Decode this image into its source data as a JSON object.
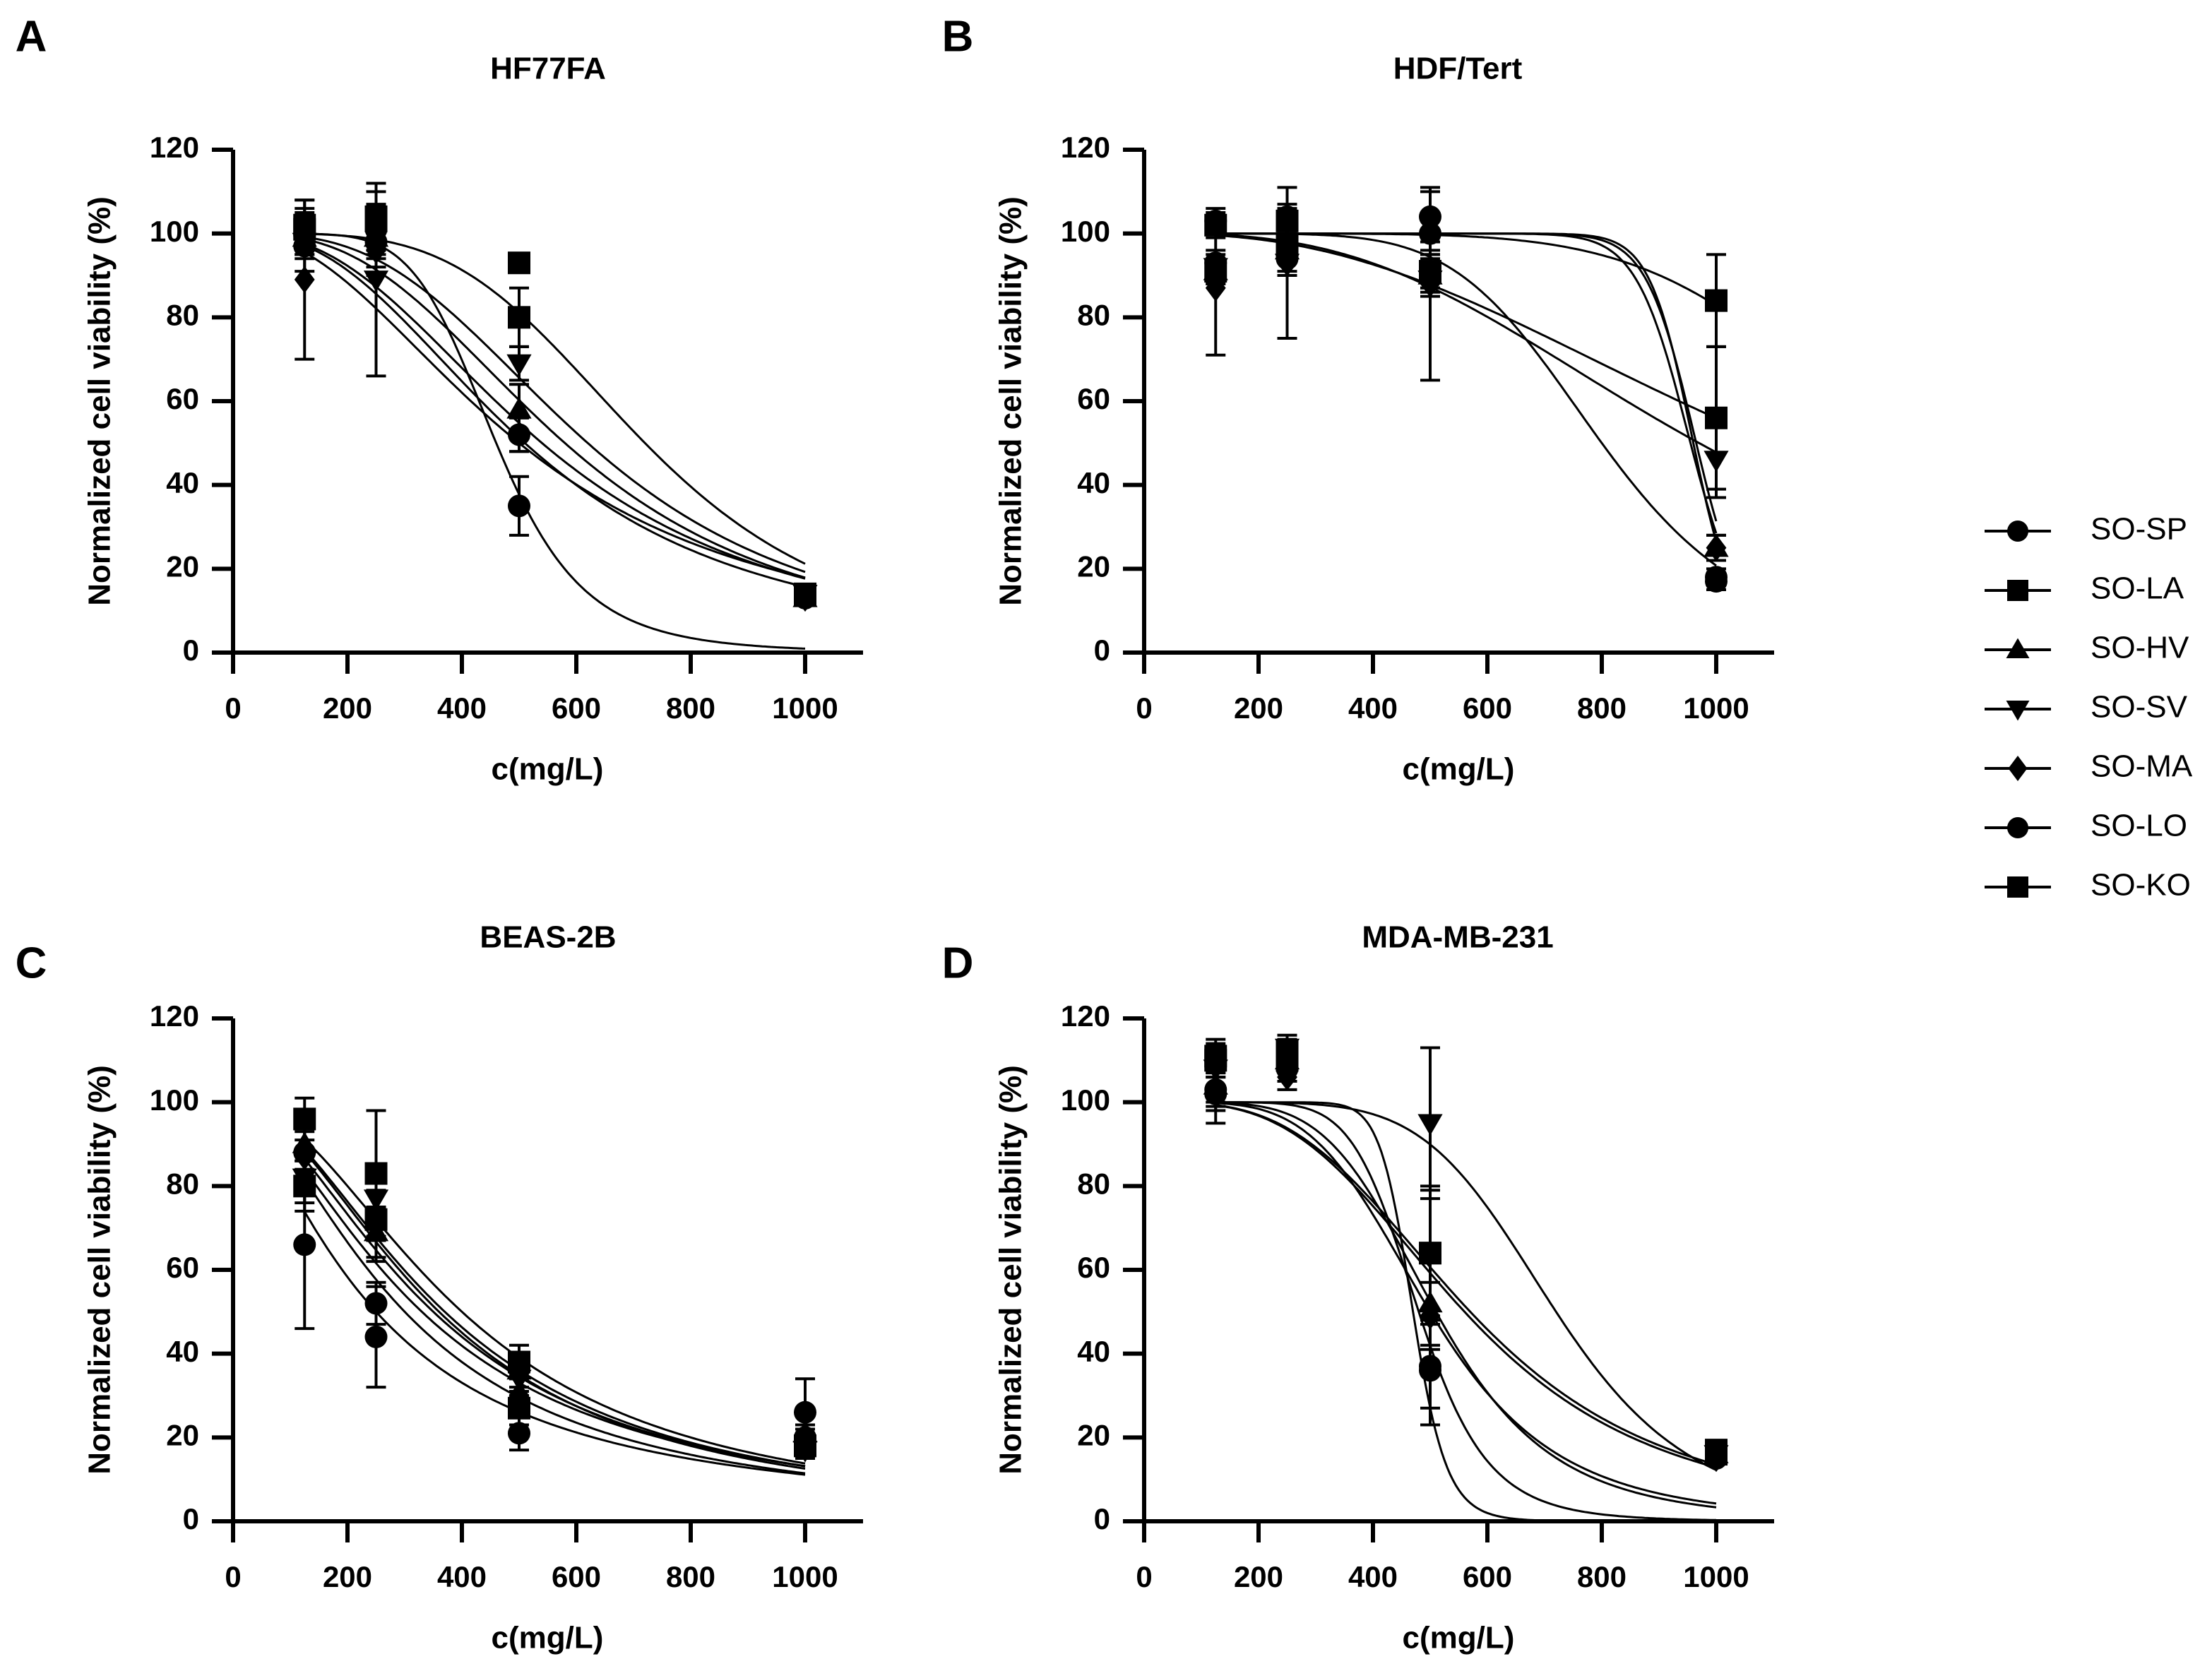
{
  "colors": {
    "ink": "#000000",
    "background": "#ffffff"
  },
  "legend": [
    {
      "label": "SO-SP",
      "marker": "circle"
    },
    {
      "label": "SO-LA",
      "marker": "square"
    },
    {
      "label": "SO-HV",
      "marker": "triangle-up"
    },
    {
      "label": "SO-SV",
      "marker": "triangle-down"
    },
    {
      "label": "SO-MA",
      "marker": "diamond"
    },
    {
      "label": "SO-LO",
      "marker": "circle"
    },
    {
      "label": "SO-KO",
      "marker": "square"
    }
  ],
  "chart_data": [
    {
      "type": "line",
      "panel": "A",
      "title": "HF77FA",
      "xlabel": "c(mg/L)",
      "ylabel": "Normalized cell viability (%)",
      "xlim": [
        0,
        1000
      ],
      "ylim": [
        0,
        120
      ],
      "xticks": [
        "0",
        "200",
        "400",
        "600",
        "800",
        "1000"
      ],
      "yticks": [
        "0",
        "20",
        "40",
        "60",
        "80",
        "100",
        "120"
      ],
      "x": [
        125,
        250,
        500,
        1000
      ],
      "series": [
        {
          "name": "SO-SP",
          "values": [
            100,
            101,
            52,
            13
          ],
          "errors": [
            5,
            6,
            4,
            1
          ],
          "fit": {
            "ic50": 510,
            "hill": 2.5,
            "bottom": 0
          }
        },
        {
          "name": "SO-LA",
          "values": [
            101,
            104,
            80,
            14
          ],
          "errors": [
            5,
            8,
            7,
            1
          ],
          "fit": {
            "ic50": 620,
            "hill": 3,
            "bottom": 0
          }
        },
        {
          "name": "SO-HV",
          "values": [
            99,
            99,
            58,
            13
          ],
          "errors": [
            4,
            5,
            6,
            1
          ],
          "fit": {
            "ic50": 540,
            "hill": 2.5,
            "bottom": 0
          }
        },
        {
          "name": "SO-SV",
          "values": [
            98,
            89,
            69,
            14
          ],
          "errors": [
            4,
            23,
            4,
            1
          ],
          "fit": {
            "ic50": 580,
            "hill": 2.8,
            "bottom": 0
          }
        },
        {
          "name": "SO-MA",
          "values": [
            89,
            96,
            52,
            13
          ],
          "errors": [
            19,
            6,
            4,
            1
          ],
          "fit": {
            "ic50": 500,
            "hill": 2.2,
            "bottom": 0
          }
        },
        {
          "name": "SO-LO",
          "values": [
            97,
            98,
            35,
            13
          ],
          "errors": [
            6,
            6,
            7,
            1
          ],
          "fit": {
            "ic50": 460,
            "hill": 6,
            "bottom": 0
          }
        },
        {
          "name": "SO-KO",
          "values": [
            102,
            103,
            93,
            14
          ],
          "errors": [
            6,
            7,
            1,
            1
          ],
          "fit": {
            "ic50": 720,
            "hill": 4,
            "bottom": 0
          }
        }
      ]
    },
    {
      "type": "line",
      "panel": "B",
      "title": "HDF/Tert",
      "xlabel": "c(mg/L)",
      "ylabel": "Normalized cell viability (%)",
      "xlim": [
        0,
        1000
      ],
      "ylim": [
        0,
        120
      ],
      "xticks": [
        "0",
        "200",
        "400",
        "600",
        "800",
        "1000"
      ],
      "yticks": [
        "0",
        "20",
        "40",
        "60",
        "80",
        "100",
        "120"
      ],
      "x": [
        125,
        250,
        500,
        1000
      ],
      "series": [
        {
          "name": "SO-SP",
          "values": [
            93,
            94,
            100,
            18
          ],
          "errors": [
            3,
            3,
            4,
            2
          ],
          "fit": {
            "ic50": 960,
            "hill": 25,
            "bottom": 0
          }
        },
        {
          "name": "SO-LA",
          "values": [
            102,
            103,
            91,
            84
          ],
          "errors": [
            3,
            3,
            4,
            11
          ],
          "fit": {
            "ic50": 1300,
            "hill": 6,
            "bottom": 0
          }
        },
        {
          "name": "SO-HV",
          "values": [
            91,
            96,
            90,
            25
          ],
          "errors": [
            3,
            3,
            4,
            3
          ],
          "fit": {
            "ic50": 965,
            "hill": 22,
            "bottom": 0
          }
        },
        {
          "name": "SO-SV",
          "values": [
            92,
            93,
            89,
            46
          ],
          "errors": [
            3,
            3,
            4,
            9
          ],
          "fit": {
            "ic50": 970,
            "hill": 2.9,
            "bottom": 0
          }
        },
        {
          "name": "SO-MA",
          "values": [
            87,
            93,
            88,
            25
          ],
          "errors": [
            16,
            18,
            23,
            3
          ],
          "fit": {
            "ic50": 800,
            "hill": 6,
            "bottom": 0
          }
        },
        {
          "name": "SO-LO",
          "values": [
            103,
            104,
            104,
            17
          ],
          "errors": [
            3,
            3,
            6,
            2
          ],
          "fit": {
            "ic50": 955,
            "hill": 20,
            "bottom": 0
          }
        },
        {
          "name": "SO-KO",
          "values": [
            91,
            97,
            91,
            56
          ],
          "errors": [
            3,
            3,
            4,
            17
          ],
          "fit": {
            "ic50": 1100,
            "hill": 2.5,
            "bottom": 0
          }
        }
      ]
    },
    {
      "type": "line",
      "panel": "C",
      "title": "BEAS-2B",
      "xlabel": "c(mg/L)",
      "ylabel": "Normalized cell viability (%)",
      "xlim": [
        0,
        1000
      ],
      "ylim": [
        0,
        120
      ],
      "xticks": [
        "0",
        "200",
        "400",
        "600",
        "800",
        "1000"
      ],
      "yticks": [
        "0",
        "20",
        "40",
        "60",
        "80",
        "100",
        "120"
      ],
      "x": [
        125,
        250,
        500,
        1000
      ],
      "series": [
        {
          "name": "SO-SP",
          "values": [
            88,
            52,
            28,
            20
          ],
          "errors": [
            6,
            5,
            3,
            2
          ],
          "fit": {
            "ic50": 300,
            "hill": 1.7,
            "bottom": 0
          }
        },
        {
          "name": "SO-LA",
          "values": [
            96,
            83,
            38,
            18
          ],
          "errors": [
            5,
            15,
            4,
            2
          ],
          "fit": {
            "ic50": 400,
            "hill": 2,
            "bottom": 0
          }
        },
        {
          "name": "SO-HV",
          "values": [
            90,
            69,
            36,
            21
          ],
          "errors": [
            6,
            6,
            4,
            2
          ],
          "fit": {
            "ic50": 360,
            "hill": 1.9,
            "bottom": 0
          }
        },
        {
          "name": "SO-SV",
          "values": [
            82,
            77,
            34,
            17
          ],
          "errors": [
            6,
            6,
            4,
            2
          ],
          "fit": {
            "ic50": 370,
            "hill": 1.9,
            "bottom": 0
          }
        },
        {
          "name": "SO-MA",
          "values": [
            87,
            73,
            30,
            19
          ],
          "errors": [
            6,
            6,
            4,
            2
          ],
          "fit": {
            "ic50": 350,
            "hill": 1.8,
            "bottom": 0
          }
        },
        {
          "name": "SO-LO",
          "values": [
            66,
            44,
            21,
            26
          ],
          "errors": [
            20,
            12,
            4,
            8
          ],
          "fit": {
            "ic50": 250,
            "hill": 1.5,
            "bottom": 0
          }
        },
        {
          "name": "SO-KO",
          "values": [
            80,
            72,
            27,
            18
          ],
          "errors": [
            6,
            10,
            4,
            2
          ],
          "fit": {
            "ic50": 330,
            "hill": 1.7,
            "bottom": 0
          }
        }
      ]
    },
    {
      "type": "line",
      "panel": "D",
      "title": "MDA-MB-231",
      "xlabel": "c(mg/L)",
      "ylabel": "Normalized cell viability (%)",
      "xlim": [
        0,
        1000
      ],
      "ylim": [
        0,
        120
      ],
      "xticks": [
        "0",
        "200",
        "400",
        "600",
        "800",
        "1000"
      ],
      "yticks": [
        "0",
        "20",
        "40",
        "60",
        "80",
        "100",
        "120"
      ],
      "x": [
        125,
        250,
        500,
        1000
      ],
      "series": [
        {
          "name": "SO-SP",
          "values": [
            103,
            108,
            37,
            16
          ],
          "errors": [
            4,
            3,
            10,
            1
          ],
          "fit": {
            "ic50": 480,
            "hill": 8,
            "bottom": 0
          }
        },
        {
          "name": "SO-LA",
          "values": [
            110,
            112,
            64,
            17
          ],
          "errors": [
            4,
            3,
            15,
            1
          ],
          "fit": {
            "ic50": 560,
            "hill": 3.3,
            "bottom": 0
          }
        },
        {
          "name": "SO-HV",
          "values": [
            104,
            110,
            52,
            16
          ],
          "errors": [
            4,
            3,
            10,
            1
          ],
          "fit": {
            "ic50": 510,
            "hill": 5,
            "bottom": 0
          }
        },
        {
          "name": "SO-SV",
          "values": [
            108,
            113,
            95,
            16
          ],
          "errors": [
            4,
            3,
            18,
            1
          ],
          "fit": {
            "ic50": 720,
            "hill": 6,
            "bottom": 0
          }
        },
        {
          "name": "SO-MA",
          "values": [
            102,
            106,
            49,
            15
          ],
          "errors": [
            4,
            3,
            8,
            1
          ],
          "fit": {
            "ic50": 500,
            "hill": 4.5,
            "bottom": 0
          }
        },
        {
          "name": "SO-LO",
          "values": [
            102,
            111,
            36,
            15
          ],
          "errors": [
            7,
            3,
            13,
            1
          ],
          "fit": {
            "ic50": 470,
            "hill": 16,
            "bottom": 0
          }
        },
        {
          "name": "SO-KO",
          "values": [
            111,
            110,
            64,
            16
          ],
          "errors": [
            4,
            3,
            16,
            1
          ],
          "fit": {
            "ic50": 570,
            "hill": 3.3,
            "bottom": 0
          }
        }
      ]
    }
  ]
}
